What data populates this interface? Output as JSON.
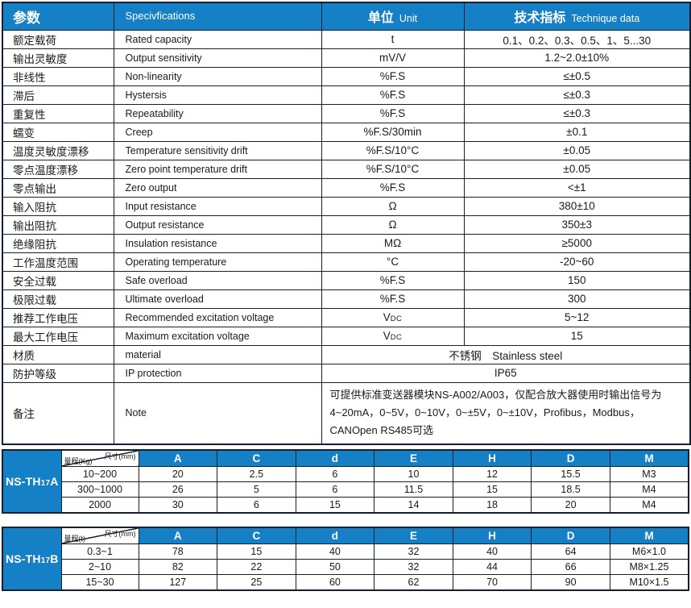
{
  "colors": {
    "blue": "#1580c6",
    "border": "#15202e",
    "text": "#1a1a1a"
  },
  "main_table": {
    "headers": {
      "param_cn": "参数",
      "param_en": "Specivfications",
      "unit_cn": "单位",
      "unit_en": "Unit",
      "tech_cn": "技术指标",
      "tech_en": "Technique data"
    },
    "rows": [
      {
        "cn": "额定载荷",
        "en": "Rated capacity",
        "unit": "t",
        "value": "0.1、0.2、0.3、0.5、1、5...30"
      },
      {
        "cn": "输出灵敏度",
        "en": "Output sensitivity",
        "unit": "mV/V",
        "value": "1.2~2.0±10%"
      },
      {
        "cn": "非线性",
        "en": "Non-linearity",
        "unit": "%F.S",
        "value": "≤±0.5"
      },
      {
        "cn": "滞后",
        "en": "Hystersis",
        "unit": "%F.S",
        "value": "≤±0.3"
      },
      {
        "cn": "重复性",
        "en": "Repeatability",
        "unit": "%F.S",
        "value": "≤±0.3"
      },
      {
        "cn": "蠕变",
        "en": "Creep",
        "unit": "%F.S/30min",
        "value": "±0.1"
      },
      {
        "cn": "温度灵敏度漂移",
        "en": "Temperature sensitivity drift",
        "unit": "%F.S/10°C",
        "value": "±0.05"
      },
      {
        "cn": "零点温度漂移",
        "en": "Zero point temperature drift",
        "unit": "%F.S/10°C",
        "value": "±0.05"
      },
      {
        "cn": "零点输出",
        "en": "Zero output",
        "unit": "%F.S",
        "value": "<±1"
      },
      {
        "cn": "输入阻抗",
        "en": "Input resistance",
        "unit": "Ω",
        "value": "380±10"
      },
      {
        "cn": "输出阻抗",
        "en": "Output resistance",
        "unit": "Ω",
        "value": "350±3"
      },
      {
        "cn": "绝缘阻抗",
        "en": "Insulation resistance",
        "unit": "MΩ",
        "value": "≥5000"
      },
      {
        "cn": "工作温度范围",
        "en": "Operating temperature",
        "unit": "°C",
        "value": "-20~60"
      },
      {
        "cn": "安全过载",
        "en": "Safe overload",
        "unit": "%F.S",
        "value": "150"
      },
      {
        "cn": "极限过载",
        "en": "Ultimate overload",
        "unit": "%F.S",
        "value": "300"
      },
      {
        "cn": "推荐工作电压",
        "en": "Recommended excitation voltage",
        "unit": "V",
        "unit_sub": "DC",
        "value": "5~12"
      },
      {
        "cn": "最大工作电压",
        "en": "Maximum excitation voltage",
        "unit": "V",
        "unit_sub": "DC",
        "value": "15"
      },
      {
        "cn": "材质",
        "en": "material",
        "merged": "不锈钢　Stainless steel"
      },
      {
        "cn": "防护等级",
        "en": "IP protection",
        "merged": "IP65"
      },
      {
        "cn": "备注",
        "en": "Note",
        "lines": [
          "可提供标准变送器模块NS-A002/A003，仅配合放大器使用时输出信号为",
          "4~20mA，0~5V，0~10V，0~±5V，0~±10V，Profibus，Modbus，",
          "CANOpen RS485可选"
        ]
      }
    ]
  },
  "dim_tables": [
    {
      "model_prefix": "NS-TH",
      "model_sub": "17",
      "model_suffix": "A",
      "diag_top": "尺寸(mm)",
      "diag_bottom": "量程(Kg)",
      "columns": [
        "A",
        "C",
        "d",
        "E",
        "H",
        "D",
        "M"
      ],
      "rows": [
        {
          "range": "10~200",
          "values": [
            "20",
            "2.5",
            "6",
            "10",
            "12",
            "15.5",
            "M3"
          ]
        },
        {
          "range": "300~1000",
          "values": [
            "26",
            "5",
            "6",
            "11.5",
            "15",
            "18.5",
            "M4"
          ]
        },
        {
          "range": "2000",
          "values": [
            "30",
            "6",
            "15",
            "14",
            "18",
            "20",
            "M4"
          ]
        }
      ]
    },
    {
      "model_prefix": "NS-TH",
      "model_sub": "17",
      "model_suffix": "B",
      "diag_top": "尺寸(mm)",
      "diag_bottom": "量程(t)",
      "columns": [
        "A",
        "C",
        "d",
        "E",
        "H",
        "D",
        "M"
      ],
      "rows": [
        {
          "range": "0.3~1",
          "values": [
            "78",
            "15",
            "40",
            "32",
            "40",
            "64",
            "M6×1.0"
          ]
        },
        {
          "range": "2~10",
          "values": [
            "82",
            "22",
            "50",
            "32",
            "44",
            "66",
            "M8×1.25"
          ]
        },
        {
          "range": "15~30",
          "values": [
            "127",
            "25",
            "60",
            "62",
            "70",
            "90",
            "M10×1.5"
          ]
        }
      ]
    }
  ]
}
